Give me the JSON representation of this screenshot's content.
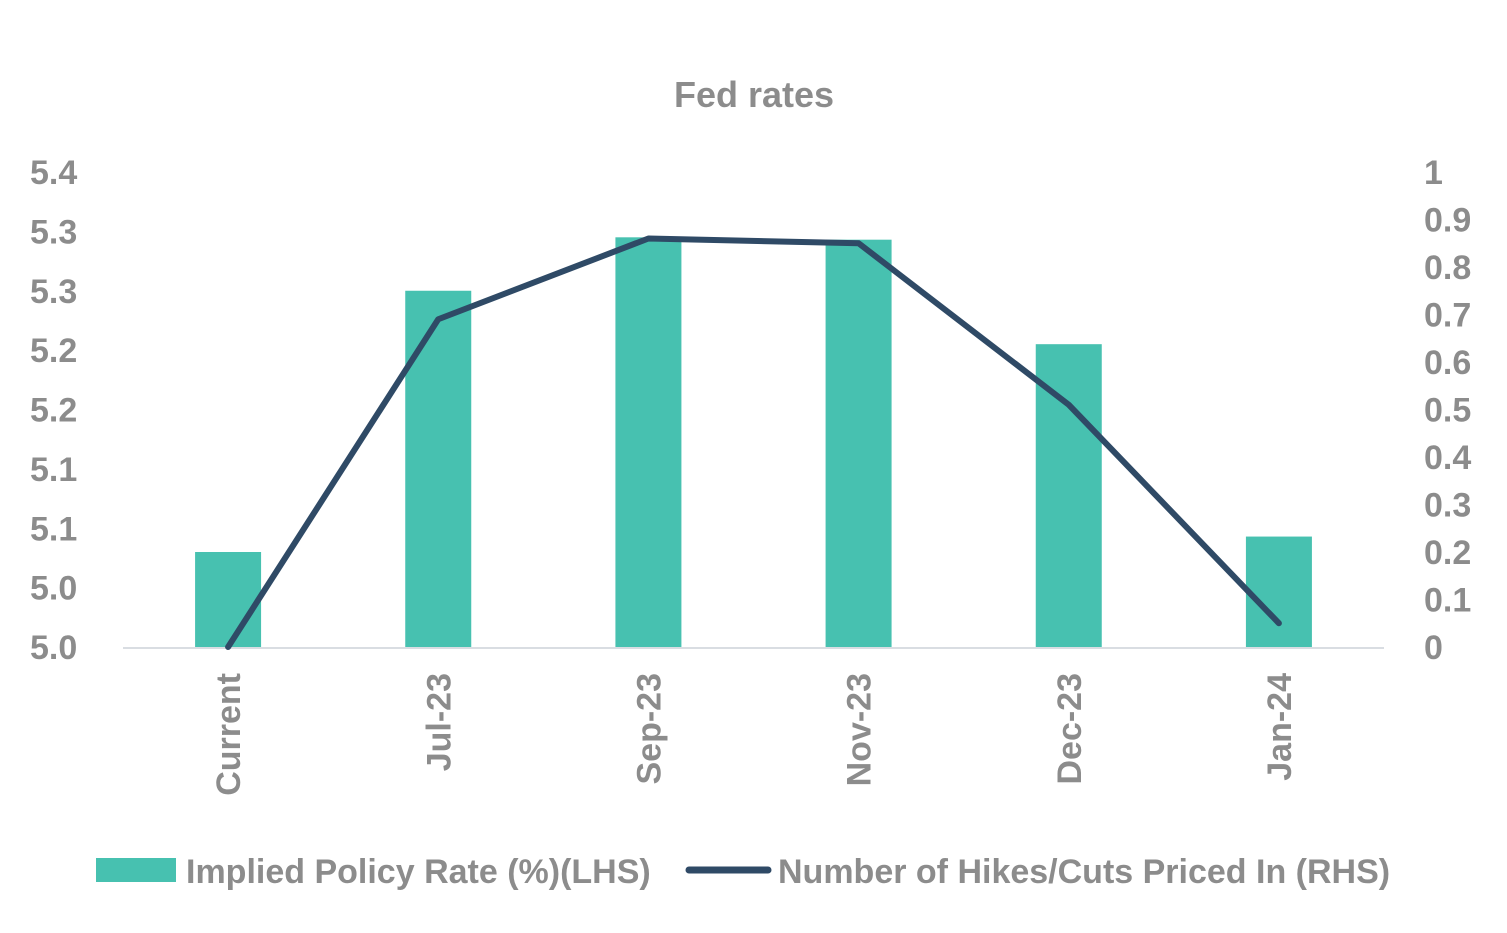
{
  "chart_data": {
    "type": "bar+line",
    "title": "Fed rates",
    "categories": [
      "Current",
      "Jul-23",
      "Sep-23",
      "Nov-23",
      "Dec-23",
      "Jan-24"
    ],
    "series": [
      {
        "name": "Implied Policy Rate (%)(LHS)",
        "type": "bar",
        "axis": "left",
        "color": "#47c1b0",
        "values": [
          5.08,
          5.3,
          5.345,
          5.343,
          5.255,
          5.093
        ]
      },
      {
        "name": "Number of Hikes/Cuts Priced In (RHS)",
        "type": "line",
        "axis": "right",
        "color": "#2f4a66",
        "values": [
          0.0,
          0.69,
          0.86,
          0.85,
          0.51,
          0.05
        ]
      }
    ],
    "y_left": {
      "min": 5.0,
      "max": 5.4,
      "ticks": [
        5.0,
        5.05,
        5.1,
        5.15,
        5.2,
        5.25,
        5.3,
        5.35,
        5.4
      ],
      "tick_labels": [
        "5.0",
        "5.0",
        "5.1",
        "5.1",
        "5.2",
        "5.2",
        "5.3",
        "5.3",
        "5.4"
      ]
    },
    "y_right": {
      "min": 0,
      "max": 1,
      "ticks": [
        0,
        0.1,
        0.2,
        0.3,
        0.4,
        0.5,
        0.6,
        0.7,
        0.8,
        0.9,
        1
      ],
      "tick_labels": [
        "0",
        "0.1",
        "0.2",
        "0.3",
        "0.4",
        "0.5",
        "0.6",
        "0.7",
        "0.8",
        "0.9",
        "1"
      ]
    },
    "grid": false,
    "legend_position": "bottom"
  }
}
